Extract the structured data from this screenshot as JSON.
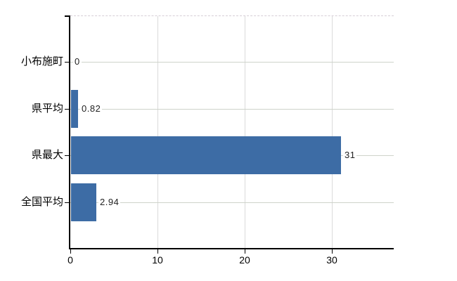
{
  "chart_data": {
    "type": "bar",
    "orientation": "horizontal",
    "title": "",
    "xlabel": "",
    "ylabel": "",
    "categories": [
      "小布施町",
      "県平均",
      "県最大",
      "全国平均"
    ],
    "values": [
      0,
      0.82,
      31,
      2.94
    ],
    "value_labels": [
      "0",
      "0.82",
      "31",
      "2.94"
    ],
    "x_ticks": [
      0,
      10,
      20,
      30
    ],
    "x_tick_labels": [
      "0",
      "10",
      "20",
      "30"
    ],
    "xlim": [
      0,
      37.1
    ],
    "legend": "none",
    "grid": {
      "vertical_gridlines_at_ticks": true,
      "horizontal_guide_per_category": true,
      "top_border_dashed": true
    },
    "colors": {
      "bar": "#3d6ca5",
      "axis": "#000000",
      "vertical_gridline": "#dadada",
      "row_gridline": "#ced3ca",
      "top_border": "#d6cdd6",
      "value_text": "#222222",
      "label_text": "#000000",
      "background": "#ffffff"
    }
  }
}
